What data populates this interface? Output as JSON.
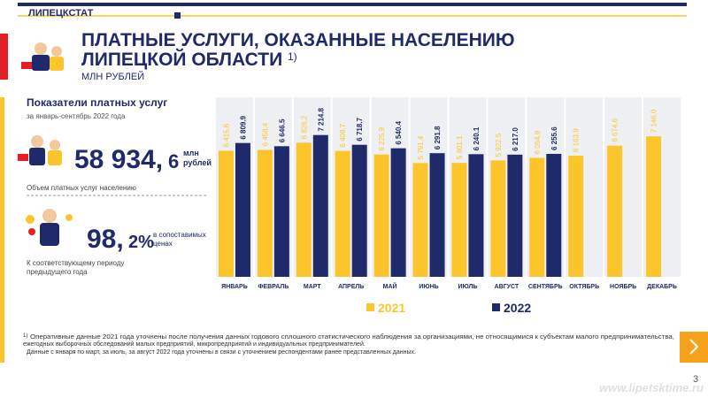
{
  "header": {
    "org": "ЛИПЕЦКСТАТ",
    "title_line1": "ПЛАТНЫЕ УСЛУГИ, ОКАЗАННЫЕ НАСЕЛЕНИЮ",
    "title_line2": "ЛИПЕЦКОЙ ОБЛАСТИ",
    "title_note": "1)",
    "subtitle": "МЛН РУБЛЕЙ"
  },
  "panel": {
    "heading": "Показатели платных услуг",
    "period": "за январь-сентябрь 2022 года",
    "volume": {
      "int": "58 934,",
      "dec": "6",
      "unit_line1": "млн",
      "unit_line2": "рублей",
      "caption": "Объем платных услуг населению"
    },
    "index": {
      "int": "98,",
      "dec": "2%",
      "note_line1": "в сопоставимых",
      "note_line2": "ценах",
      "caption_line1": "К соответствующему периоду",
      "caption_line2": "предыдущего года"
    }
  },
  "chart_data": {
    "type": "bar",
    "categories": [
      "ЯНВАРЬ",
      "ФЕВРАЛЬ",
      "МАРТ",
      "АПРЕЛЬ",
      "МАЙ",
      "ИЮНЬ",
      "ИЮЛЬ",
      "АВГУСТ",
      "СЕНТЯБРЬ",
      "ОКТЯБРЬ",
      "НОЯБРЬ",
      "ДЕКАБРЬ"
    ],
    "series": [
      {
        "name": "2021",
        "color": "#fdc52c",
        "values": [
          6415.6,
          6458.4,
          6826.2,
          6408.7,
          6225.9,
          5791.4,
          5801.1,
          5922.5,
          6054.9,
          6163.9,
          6674.6,
          7146.0
        ],
        "value_labels": [
          "6 415,6",
          "6 458,4",
          "6 826,2",
          "6 408,7",
          "6 225,9",
          "5 791,4",
          "5 801,1",
          "5 922,5",
          "6 054,9",
          "6 163,9",
          "6 674,6",
          "7 146,0"
        ]
      },
      {
        "name": "2022",
        "color": "#1f2a6b",
        "values": [
          6809.9,
          6646.5,
          7214.8,
          6718.7,
          6540.4,
          6291.8,
          6240.1,
          6217.0,
          6255.6,
          null,
          null,
          null
        ],
        "value_labels": [
          "6 809.9",
          "6 646.5",
          "7 214.8",
          "6 718.7",
          "6 540.4",
          "6 291.8",
          "6 240.1",
          "6 217.0",
          "6 255.6",
          null,
          null,
          null
        ]
      }
    ],
    "ylim": [
      0,
      9000
    ]
  },
  "footnote": {
    "mark": "1)",
    "line1": "Оперативные данные 2021 года уточнены после получения данных годового сплошного статистического наблюдения за организациями, не относящимися к субъектам малого предпринимательства,",
    "line2": "ежегодных выборочных обследований малых предприятий, микропредприятий и индивидуальных предпринимателей.",
    "line3": "Данные с января по март, за июль, за август 2022 года уточнены в связи с уточнением респондентами ранее представленных данных."
  },
  "page_number": "3",
  "watermark": "www.lipetsktime.ru"
}
